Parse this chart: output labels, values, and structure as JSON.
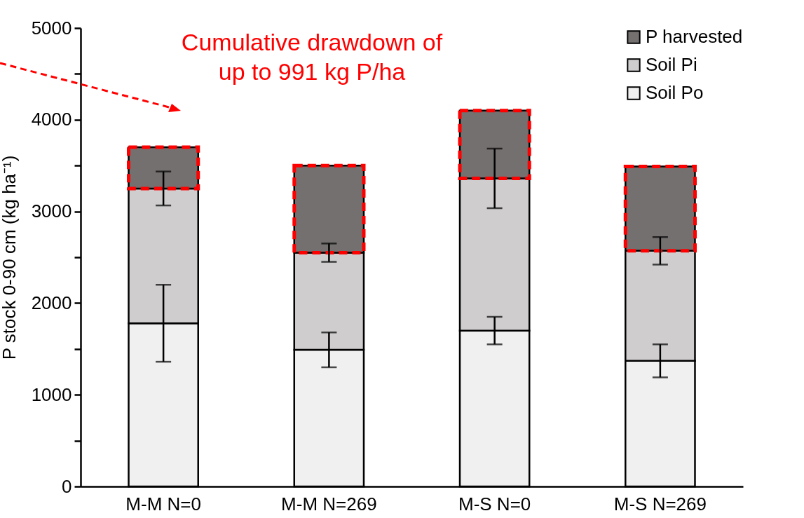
{
  "chart_data": {
    "type": "bar",
    "stacked": true,
    "ylabel": "P stock 0-90 cm (kg ha⁻¹)",
    "categories": [
      "M-M N=0",
      "M-M N=269",
      "M-S N=0",
      "M-S N=269"
    ],
    "series": [
      {
        "name": "Soil Po",
        "color": "#f0f0f0",
        "values": [
          1780,
          1490,
          1700,
          1370
        ],
        "errors": [
          420,
          190,
          150,
          180
        ]
      },
      {
        "name": "Soil Pi",
        "color": "#cfcdce",
        "values": [
          1470,
          1060,
          1660,
          1200
        ],
        "errors": [
          185,
          100,
          325,
          150
        ]
      },
      {
        "name": "P harvested",
        "color": "#757070",
        "values": [
          450,
          950,
          740,
          920
        ]
      }
    ],
    "ylim": [
      0,
      5000
    ],
    "yticks": [
      0,
      {
        "value": 500,
        "label": null
      },
      1000,
      {
        "value": 1500,
        "label": null
      },
      2000,
      {
        "value": 2500,
        "label": null
      },
      3000,
      {
        "value": 3500,
        "label": null
      },
      4000,
      {
        "value": 4500,
        "label": null
      },
      5000
    ],
    "grid": false,
    "legend": "top right",
    "annotations": [
      "Cumulative drawdown of up to 991 kg P/ha"
    ]
  }
}
